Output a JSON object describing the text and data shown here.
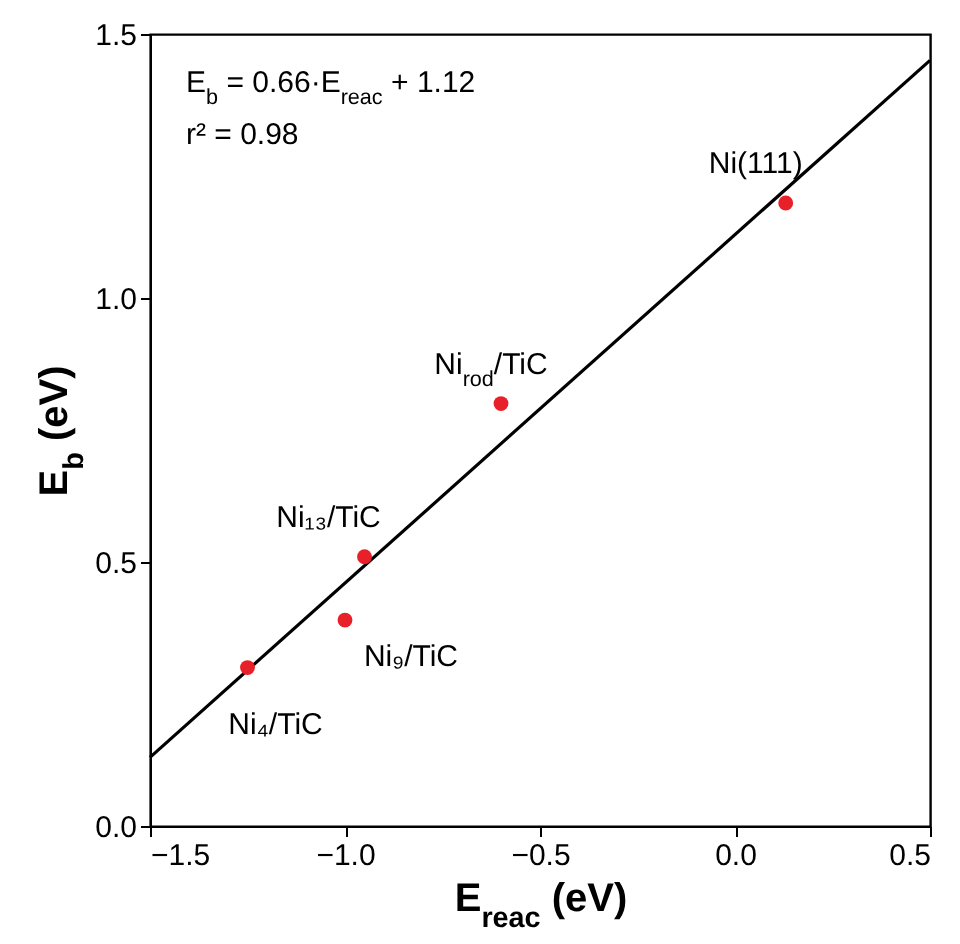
{
  "chart_data": {
    "type": "scatter",
    "xlabel": "E$_{reac}$ (eV)",
    "ylabel": "E$_{b}$ (eV)",
    "xlim": [
      -1.5,
      0.5
    ],
    "xticks": [
      -1.5,
      {
        "value": -1,
        "label": "−1.0"
      },
      -0.5,
      {
        "value": 0,
        "label": "0.0"
      },
      0.5
    ],
    "ylim": [
      0,
      1.5
    ],
    "yticks": [
      {
        "value": 0,
        "label": "0.0"
      },
      0.5,
      {
        "value": 1,
        "label": "1.0"
      },
      1.5
    ],
    "grid": false,
    "series": [
      {
        "type": "scatter",
        "color": "#e8202a",
        "marker": "circle",
        "x": [
          -1.25,
          -1.0,
          -0.95,
          -0.6,
          0.13
        ],
        "values": [
          0.3,
          0.39,
          0.51,
          0.8,
          1.18
        ]
      },
      {
        "type": "line",
        "color": "#000000",
        "line_style": "solid",
        "x": [
          -1.5,
          0.5
        ],
        "values": [
          0.13,
          1.45
        ]
      }
    ],
    "annotations": [
      "E$_{b}$ = 0.66·E$_{reac}$ + 1.12",
      "r² = 0.98",
      {
        "text": "Ni₄/TiC",
        "x": -1.25,
        "y": 0.3
      },
      {
        "text": "Ni₉/TiC",
        "x": -1.0,
        "y": 0.39
      },
      {
        "text": "Ni₁₃/TiC",
        "x": -0.95,
        "y": 0.51
      },
      {
        "text": "Ni$_{rod}$/TiC",
        "x": -0.6,
        "y": 0.8
      },
      {
        "text": "Ni(111)",
        "x": 0.13,
        "y": 1.18
      }
    ]
  }
}
